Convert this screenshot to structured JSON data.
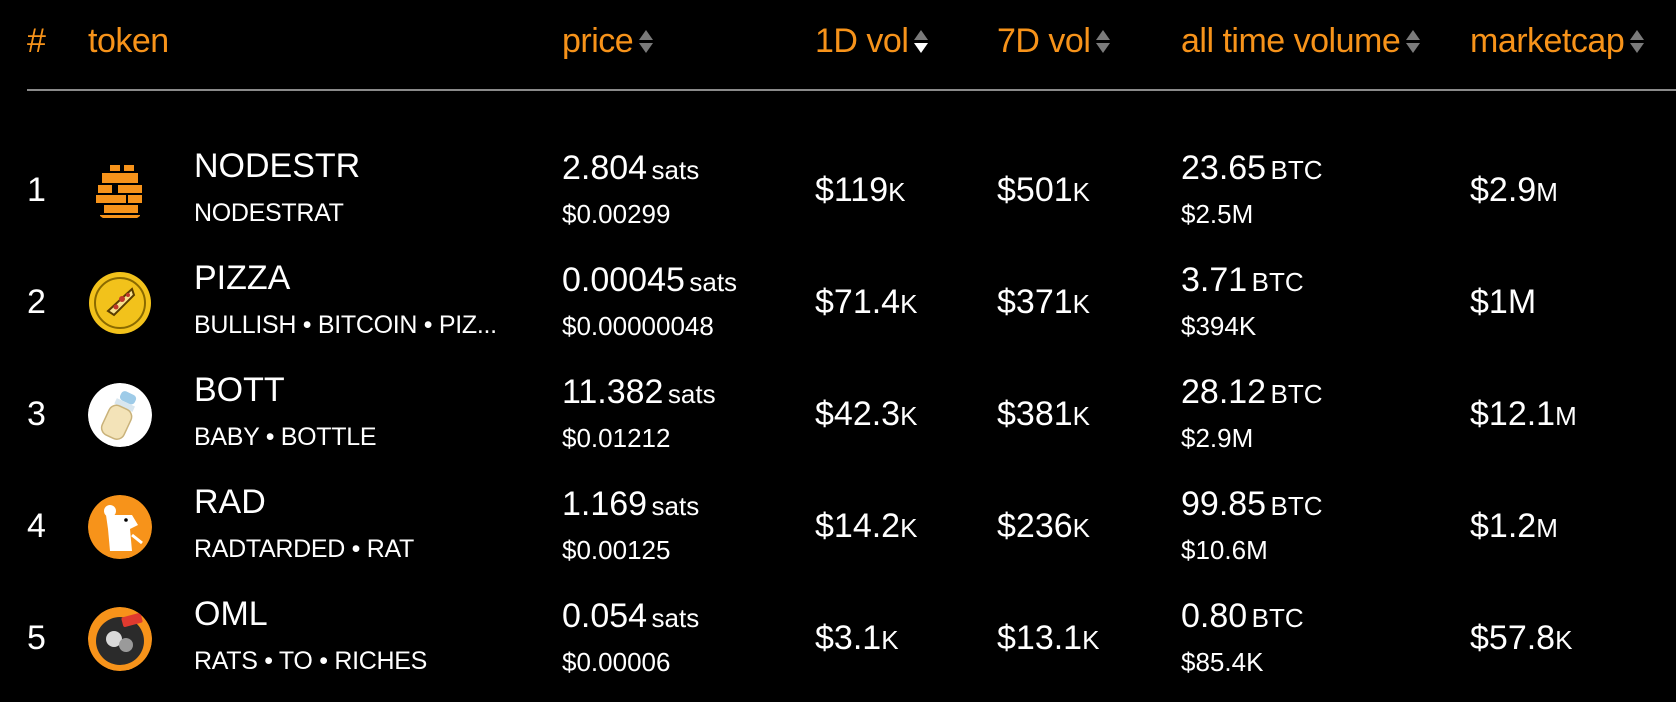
{
  "header": {
    "rank": "#",
    "token": "token",
    "price": "price",
    "vol1d": "1D vol",
    "vol7d": "7D vol",
    "all_time": "all time volume",
    "marketcap": "marketcap"
  },
  "colors": {
    "accent": "#f7931a",
    "background": "#000000",
    "text": "#ffffff"
  },
  "rows": [
    {
      "rank": "1",
      "icon": "nodestrat-logo-icon",
      "ticker": "NODESTR",
      "name": "NODESTRAT",
      "price_sats": "2.804",
      "price_unit": "sats",
      "price_usd": "$0.00299",
      "vol1d": "$119",
      "vol1d_suffix": "K",
      "vol7d": "$501",
      "vol7d_suffix": "K",
      "atv_btc": "23.65",
      "atv_unit": "BTC",
      "atv_usd": "$2.5M",
      "mcap": "$2.9",
      "mcap_suffix": "M"
    },
    {
      "rank": "2",
      "icon": "pizza-coin-icon",
      "ticker": "PIZZA",
      "name": "BULLISH • BITCOIN • PIZ...",
      "price_sats": "0.00045",
      "price_unit": "sats",
      "price_usd": "$0.00000048",
      "vol1d": "$71.4",
      "vol1d_suffix": "K",
      "vol7d": "$371",
      "vol7d_suffix": "K",
      "atv_btc": "3.71",
      "atv_unit": "BTC",
      "atv_usd": "$394K",
      "mcap": "$1M",
      "mcap_suffix": ""
    },
    {
      "rank": "3",
      "icon": "baby-bottle-icon",
      "ticker": "BOTT",
      "name": "BABY • BOTTLE",
      "price_sats": "11.382",
      "price_unit": "sats",
      "price_usd": "$0.01212",
      "vol1d": "$42.3",
      "vol1d_suffix": "K",
      "vol7d": "$381",
      "vol7d_suffix": "K",
      "atv_btc": "28.12",
      "atv_unit": "BTC",
      "atv_usd": "$2.9M",
      "mcap": "$12.1",
      "mcap_suffix": "M"
    },
    {
      "rank": "4",
      "icon": "rat-icon",
      "ticker": "RAD",
      "name": "RADTARDED • RAT",
      "price_sats": "1.169",
      "price_unit": "sats",
      "price_usd": "$0.00125",
      "vol1d": "$14.2",
      "vol1d_suffix": "K",
      "vol7d": "$236",
      "vol7d_suffix": "K",
      "atv_btc": "99.85",
      "atv_unit": "BTC",
      "atv_usd": "$10.6M",
      "mcap": "$1.2",
      "mcap_suffix": "M"
    },
    {
      "rank": "5",
      "icon": "oml-logo-icon",
      "ticker": "OML",
      "name": "RATS • TO • RICHES",
      "price_sats": "0.054",
      "price_unit": "sats",
      "price_usd": "$0.00006",
      "vol1d": "$3.1",
      "vol1d_suffix": "K",
      "vol7d": "$13.1",
      "vol7d_suffix": "K",
      "atv_btc": "0.80",
      "atv_unit": "BTC",
      "atv_usd": "$85.4K",
      "mcap": "$57.8",
      "mcap_suffix": "K"
    }
  ]
}
